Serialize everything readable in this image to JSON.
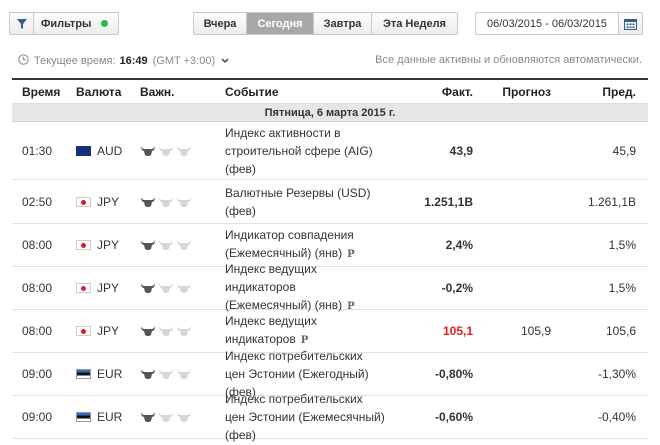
{
  "toolbar": {
    "filter_label": "Фильтры",
    "tabs": [
      {
        "label": "Вчера",
        "active": false
      },
      {
        "label": "Сегодня",
        "active": true
      },
      {
        "label": "Завтра",
        "active": false
      },
      {
        "label": "Эта Неделя",
        "active": false
      }
    ],
    "date_range": "06/03/2015 - 06/03/2015"
  },
  "status": {
    "current_time_label": "Текущее время:",
    "current_time": "16:49",
    "timezone": "(GMT +3:00)",
    "notice": "Все данные активны и обновляются автоматически."
  },
  "table": {
    "headers": {
      "time": "Время",
      "currency": "Валюта",
      "importance": "Важн.",
      "event": "Событие",
      "actual": "Факт.",
      "forecast": "Прогноз",
      "previous": "Пред."
    },
    "day": "Пятница, 6 марта 2015 г.",
    "rows": [
      {
        "time": "01:30",
        "currency": "AUD",
        "flag": "au",
        "importance": 1,
        "event": "Индекс активности в строительной сфере (AIG) (фев)",
        "prelim": false,
        "actual": "43,9",
        "actual_red": false,
        "forecast": "",
        "previous": "45,9"
      },
      {
        "time": "02:50",
        "currency": "JPY",
        "flag": "jp",
        "importance": 1,
        "event": "Валютные Резервы (USD) (фев)",
        "prelim": false,
        "actual": "1.251,1B",
        "actual_red": false,
        "forecast": "",
        "previous": "1.261,1B"
      },
      {
        "time": "08:00",
        "currency": "JPY",
        "flag": "jp",
        "importance": 1,
        "event": "Индикатор совпадения (Ежемесячный) (янв)",
        "prelim": true,
        "actual": "2,4%",
        "actual_red": false,
        "forecast": "",
        "previous": "1,5%"
      },
      {
        "time": "08:00",
        "currency": "JPY",
        "flag": "jp",
        "importance": 1,
        "event": "Индекс ведущих индикаторов (Ежемесячный) (янв)",
        "prelim": true,
        "actual": "-0,2%",
        "actual_red": false,
        "forecast": "",
        "previous": "1,5%"
      },
      {
        "time": "08:00",
        "currency": "JPY",
        "flag": "jp",
        "importance": 1,
        "event": "Индекс ведущих индикаторов",
        "prelim": true,
        "actual": "105,1",
        "actual_red": true,
        "forecast": "105,9",
        "previous": "105,6"
      },
      {
        "time": "09:00",
        "currency": "EUR",
        "flag": "ee",
        "importance": 1,
        "event": "Индекс потребительских цен Эстонии (Ежегодный) (фев)",
        "prelim": false,
        "actual": "-0,80%",
        "actual_red": false,
        "forecast": "",
        "previous": "-1,30%"
      },
      {
        "time": "09:00",
        "currency": "EUR",
        "flag": "ee",
        "importance": 1,
        "event": "Индекс потребительских цен Эстонии (Ежемесячный) (фев)",
        "prelim": false,
        "actual": "-0,60%",
        "actual_red": false,
        "forecast": "",
        "previous": "-0,40%"
      }
    ],
    "prelim_mark": "P"
  },
  "colors": {
    "status_dot": "#2fb84a",
    "active_tab": "#a8a8a8",
    "negative_red": "#e02020"
  }
}
